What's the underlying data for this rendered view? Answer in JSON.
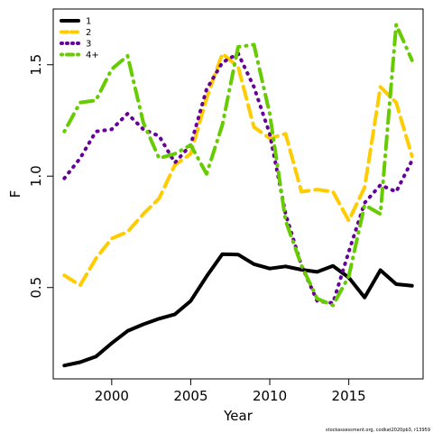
{
  "chart_data": {
    "type": "line",
    "xlabel": "Year",
    "ylabel": "F",
    "xlim": [
      1996.3,
      2019.7
    ],
    "ylim": [
      0.09,
      1.75
    ],
    "x_ticks": [
      2000,
      2005,
      2010,
      2015
    ],
    "y_ticks": [
      0.5,
      1.0,
      1.5
    ],
    "x_tick_labels": [
      "2000",
      "2005",
      "2010",
      "2015"
    ],
    "y_tick_labels": [
      "0.5",
      "1.0",
      "1.5"
    ],
    "legend_position": "top-left",
    "grid": false,
    "credit": "stockassessment.org, codkat2020pb3, r13959",
    "x": [
      1997,
      1998,
      1999,
      2000,
      2001,
      2002,
      2003,
      2004,
      2005,
      2006,
      2007,
      2008,
      2009,
      2010,
      2011,
      2012,
      2013,
      2014,
      2015,
      2016,
      2017,
      2018,
      2019
    ],
    "series": [
      {
        "name": "1",
        "color": "#000000",
        "dash": "solid",
        "values": [
          0.15,
          0.165,
          0.19,
          0.25,
          0.305,
          0.335,
          0.36,
          0.38,
          0.44,
          0.55,
          0.65,
          0.648,
          0.605,
          0.585,
          0.595,
          0.58,
          0.57,
          0.597,
          0.545,
          0.455,
          0.578,
          0.515,
          0.508
        ]
      },
      {
        "name": "2",
        "color": "#FFCC00",
        "dash": "dashed",
        "values": [
          0.555,
          0.51,
          0.63,
          0.72,
          0.75,
          0.83,
          0.9,
          1.05,
          1.1,
          1.35,
          1.55,
          1.49,
          1.22,
          1.17,
          1.19,
          0.93,
          0.94,
          0.93,
          0.8,
          0.95,
          1.4,
          1.33,
          1.09
        ]
      },
      {
        "name": "3",
        "color": "#660099",
        "dash": "dotted",
        "values": [
          0.99,
          1.08,
          1.2,
          1.21,
          1.28,
          1.21,
          1.18,
          1.06,
          1.14,
          1.39,
          1.51,
          1.55,
          1.4,
          1.19,
          0.83,
          0.6,
          0.44,
          0.43,
          0.66,
          0.88,
          0.96,
          0.93,
          1.07
        ]
      },
      {
        "name": "4+",
        "color": "#66CC00",
        "dash": "dotdash",
        "values": [
          1.2,
          1.33,
          1.34,
          1.48,
          1.54,
          1.24,
          1.08,
          1.1,
          1.14,
          1.01,
          1.23,
          1.58,
          1.59,
          1.28,
          0.8,
          0.6,
          0.45,
          0.42,
          0.55,
          0.87,
          0.83,
          1.68,
          1.52
        ]
      }
    ]
  }
}
